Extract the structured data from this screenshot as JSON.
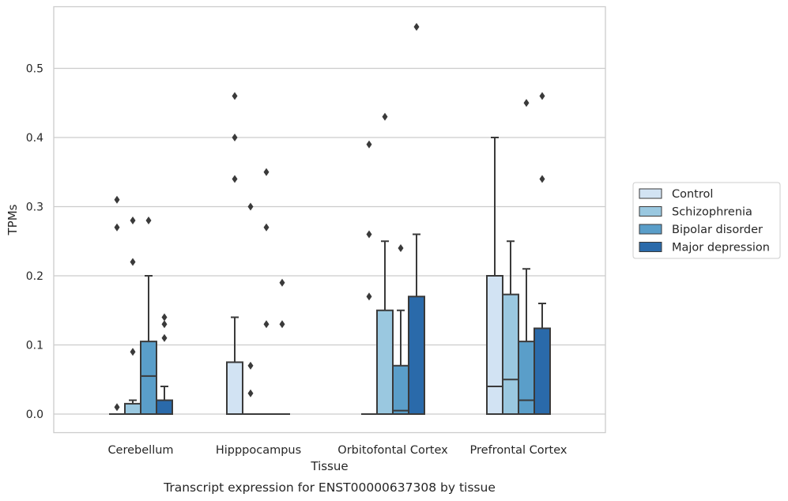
{
  "chart_data": {
    "type": "box",
    "title": "",
    "caption": "Transcript expression for ENST00000637308 by tissue",
    "xlabel": "Tissue",
    "ylabel": "TPMs",
    "ylim": [
      -0.028,
      0.588
    ],
    "yticks": [
      0.0,
      0.1,
      0.2,
      0.3,
      0.4,
      0.5
    ],
    "ytick_labels": [
      "0.0",
      "0.1",
      "0.2",
      "0.3",
      "0.4",
      "0.5"
    ],
    "grid": "horizontal",
    "legend_position": "right",
    "categories": [
      "Cerebellum",
      "Hipppocampus",
      "Orbitofontal Cortex",
      "Prefrontal Cortex"
    ],
    "series": [
      {
        "name": "Control",
        "color": "#d2e3f3",
        "boxes": [
          {
            "q1": 0.0,
            "median": 0.0,
            "q3": 0.0,
            "whisker_low": 0.0,
            "whisker_high": 0.0,
            "outliers": [
              0.01,
              0.27,
              0.31
            ]
          },
          {
            "q1": 0.0,
            "median": 0.0,
            "q3": 0.075,
            "whisker_low": 0.0,
            "whisker_high": 0.14,
            "outliers": [
              0.34,
              0.4,
              0.46
            ]
          },
          {
            "q1": 0.0,
            "median": 0.0,
            "q3": 0.0,
            "whisker_low": 0.0,
            "whisker_high": 0.0,
            "outliers": [
              0.17,
              0.26,
              0.39
            ]
          },
          {
            "q1": 0.0,
            "median": 0.04,
            "q3": 0.2,
            "whisker_low": 0.0,
            "whisker_high": 0.4,
            "outliers": []
          }
        ]
      },
      {
        "name": "Schizophrenia",
        "color": "#9ac8e0",
        "boxes": [
          {
            "q1": 0.0,
            "median": 0.0,
            "q3": 0.015,
            "whisker_low": 0.0,
            "whisker_high": 0.02,
            "outliers": [
              0.09,
              0.22,
              0.28
            ]
          },
          {
            "q1": 0.0,
            "median": 0.0,
            "q3": 0.0,
            "whisker_low": 0.0,
            "whisker_high": 0.0,
            "outliers": [
              0.07,
              0.03,
              0.3
            ]
          },
          {
            "q1": 0.0,
            "median": 0.0,
            "q3": 0.15,
            "whisker_low": 0.0,
            "whisker_high": 0.25,
            "outliers": [
              0.43
            ]
          },
          {
            "q1": 0.0,
            "median": 0.05,
            "q3": 0.173,
            "whisker_low": 0.0,
            "whisker_high": 0.25,
            "outliers": []
          }
        ]
      },
      {
        "name": "Bipolar disorder",
        "color": "#5a9ec9",
        "boxes": [
          {
            "q1": 0.0,
            "median": 0.055,
            "q3": 0.105,
            "whisker_low": 0.0,
            "whisker_high": 0.2,
            "outliers": [
              0.28
            ]
          },
          {
            "q1": 0.0,
            "median": 0.0,
            "q3": 0.0,
            "whisker_low": 0.0,
            "whisker_high": 0.0,
            "outliers": [
              0.13,
              0.27,
              0.35
            ]
          },
          {
            "q1": 0.0,
            "median": 0.005,
            "q3": 0.07,
            "whisker_low": 0.0,
            "whisker_high": 0.15,
            "outliers": [
              0.24
            ]
          },
          {
            "q1": 0.0,
            "median": 0.02,
            "q3": 0.105,
            "whisker_low": 0.0,
            "whisker_high": 0.21,
            "outliers": [
              0.45
            ]
          }
        ]
      },
      {
        "name": "Major depression",
        "color": "#2a6aaa",
        "boxes": [
          {
            "q1": 0.0,
            "median": 0.0,
            "q3": 0.02,
            "whisker_low": 0.0,
            "whisker_high": 0.04,
            "outliers": [
              0.11,
              0.13,
              0.14
            ]
          },
          {
            "q1": 0.0,
            "median": 0.0,
            "q3": 0.0,
            "whisker_low": 0.0,
            "whisker_high": 0.0,
            "outliers": [
              0.13,
              0.19
            ]
          },
          {
            "q1": 0.0,
            "median": 0.0,
            "q3": 0.17,
            "whisker_low": 0.0,
            "whisker_high": 0.26,
            "outliers": [
              0.56
            ]
          },
          {
            "q1": 0.0,
            "median": 0.0,
            "q3": 0.124,
            "whisker_low": 0.0,
            "whisker_high": 0.16,
            "outliers": [
              0.34,
              0.46
            ]
          }
        ]
      }
    ]
  }
}
